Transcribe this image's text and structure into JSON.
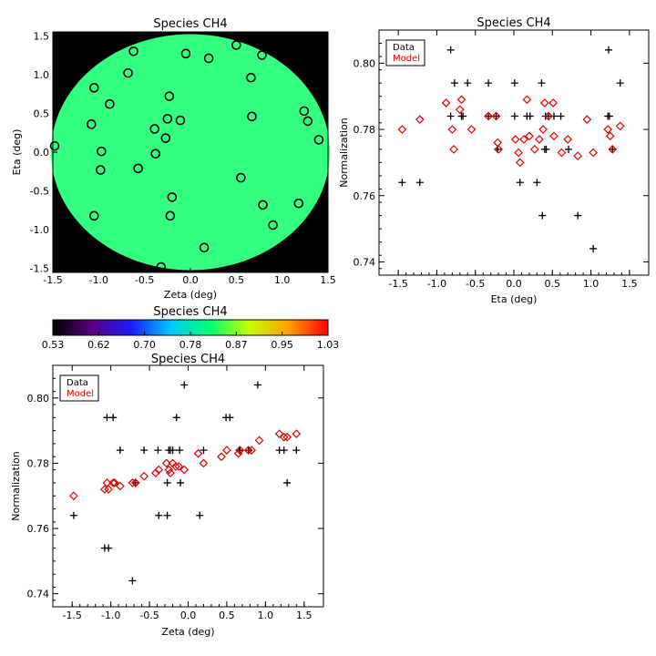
{
  "chart_data": [
    {
      "type": "map",
      "title": "Species CH4",
      "xlabel": "Zeta (deg)",
      "ylabel": "Eta (deg)",
      "xlim": [
        -1.5,
        1.5
      ],
      "ylim": [
        -1.55,
        1.55
      ],
      "xticks": [
        "-1.5",
        "-1.0",
        "-0.5",
        "0.0",
        "0.5",
        "1.0",
        "1.5"
      ],
      "yticks": [
        "-1.5",
        "-1.0",
        "-0.5",
        "0.0",
        "0.5",
        "1.0",
        "1.5"
      ],
      "background_color": "#000000",
      "disk_color": "#33ff80",
      "disk_radius": 1.52,
      "marker": "circle",
      "points": [
        {
          "x": -0.62,
          "y": 1.3
        },
        {
          "x": -0.68,
          "y": 1.02
        },
        {
          "x": -0.05,
          "y": 1.27
        },
        {
          "x": 0.2,
          "y": 1.21
        },
        {
          "x": 0.5,
          "y": 1.38
        },
        {
          "x": 0.78,
          "y": 1.25
        },
        {
          "x": 0.66,
          "y": 0.96
        },
        {
          "x": -1.05,
          "y": 0.83
        },
        {
          "x": -0.88,
          "y": 0.62
        },
        {
          "x": -1.08,
          "y": 0.36
        },
        {
          "x": -0.23,
          "y": 0.72
        },
        {
          "x": -0.25,
          "y": 0.43
        },
        {
          "x": -0.11,
          "y": 0.41
        },
        {
          "x": -0.39,
          "y": 0.3
        },
        {
          "x": -0.27,
          "y": 0.18
        },
        {
          "x": 0.67,
          "y": 0.46
        },
        {
          "x": 1.24,
          "y": 0.53
        },
        {
          "x": 1.28,
          "y": 0.4
        },
        {
          "x": 1.4,
          "y": 0.16
        },
        {
          "x": -1.48,
          "y": 0.08
        },
        {
          "x": -0.97,
          "y": 0.01
        },
        {
          "x": -0.98,
          "y": -0.23
        },
        {
          "x": -0.57,
          "y": -0.21
        },
        {
          "x": -0.38,
          "y": -0.02
        },
        {
          "x": 0.55,
          "y": -0.33
        },
        {
          "x": -0.2,
          "y": -0.58
        },
        {
          "x": 0.79,
          "y": -0.68
        },
        {
          "x": 1.18,
          "y": -0.66
        },
        {
          "x": -1.05,
          "y": -0.82
        },
        {
          "x": -0.22,
          "y": -0.82
        },
        {
          "x": 0.9,
          "y": -0.94
        },
        {
          "x": 0.15,
          "y": -1.23
        },
        {
          "x": -0.32,
          "y": -1.48
        }
      ]
    },
    {
      "type": "scatter",
      "title": "Species CH4",
      "xlabel": "Eta (deg)",
      "ylabel": "Normalization",
      "xlim": [
        -1.75,
        1.75
      ],
      "ylim": [
        0.736,
        0.81
      ],
      "xticks": [
        "-1.5",
        "-1.0",
        "-0.5",
        "0.0",
        "0.5",
        "1.0",
        "1.5"
      ],
      "yticks": [
        "0.74",
        "0.76",
        "0.78",
        "0.80"
      ],
      "legend": {
        "position": "top-left",
        "entries": [
          {
            "label": "Data",
            "color": "#000000"
          },
          {
            "label": "Model",
            "color": "#e00000"
          }
        ]
      },
      "series": [
        {
          "name": "Data",
          "marker": "plus",
          "color": "#000000",
          "points": [
            [
              -0.82,
              0.804
            ],
            [
              -0.77,
              0.794
            ],
            [
              -0.6,
              0.794
            ],
            [
              -0.33,
              0.794
            ],
            [
              0.01,
              0.794
            ],
            [
              0.36,
              0.794
            ],
            [
              1.38,
              0.794
            ],
            [
              -0.82,
              0.784
            ],
            [
              -0.68,
              0.784
            ],
            [
              -0.66,
              0.784
            ],
            [
              -0.33,
              0.784
            ],
            [
              -0.23,
              0.784
            ],
            [
              0.01,
              0.784
            ],
            [
              0.17,
              0.784
            ],
            [
              0.21,
              0.784
            ],
            [
              0.41,
              0.784
            ],
            [
              0.45,
              0.784
            ],
            [
              0.52,
              0.784
            ],
            [
              0.61,
              0.784
            ],
            [
              1.22,
              0.784
            ],
            [
              1.24,
              0.784
            ],
            [
              -0.21,
              0.774
            ],
            [
              0.4,
              0.774
            ],
            [
              0.42,
              0.774
            ],
            [
              0.71,
              0.774
            ],
            [
              1.28,
              0.774
            ],
            [
              -1.45,
              0.764
            ],
            [
              -1.22,
              0.764
            ],
            [
              0.08,
              0.764
            ],
            [
              0.3,
              0.764
            ],
            [
              1.23,
              0.804
            ],
            [
              0.37,
              0.754
            ],
            [
              0.83,
              0.754
            ],
            [
              1.03,
              0.744
            ]
          ]
        },
        {
          "name": "Model",
          "marker": "diamond",
          "color": "#e00000",
          "points": [
            [
              -1.45,
              0.78
            ],
            [
              -1.22,
              0.783
            ],
            [
              -0.88,
              0.788
            ],
            [
              -0.8,
              0.78
            ],
            [
              -0.78,
              0.774
            ],
            [
              -0.68,
              0.789
            ],
            [
              -0.7,
              0.786
            ],
            [
              -0.55,
              0.78
            ],
            [
              -0.33,
              0.784
            ],
            [
              -0.23,
              0.784
            ],
            [
              -0.2,
              0.774
            ],
            [
              -0.21,
              0.776
            ],
            [
              0.02,
              0.777
            ],
            [
              0.06,
              0.773
            ],
            [
              0.08,
              0.77
            ],
            [
              0.13,
              0.777
            ],
            [
              0.17,
              0.789
            ],
            [
              0.2,
              0.778
            ],
            [
              0.27,
              0.774
            ],
            [
              0.33,
              0.777
            ],
            [
              0.38,
              0.78
            ],
            [
              0.4,
              0.788
            ],
            [
              0.45,
              0.784
            ],
            [
              0.51,
              0.788
            ],
            [
              0.52,
              0.778
            ],
            [
              0.62,
              0.773
            ],
            [
              0.7,
              0.777
            ],
            [
              0.83,
              0.772
            ],
            [
              0.95,
              0.783
            ],
            [
              1.03,
              0.773
            ],
            [
              1.22,
              0.78
            ],
            [
              1.25,
              0.778
            ],
            [
              1.28,
              0.774
            ],
            [
              1.38,
              0.781
            ]
          ]
        }
      ]
    },
    {
      "type": "colorbar",
      "title": "Species CH4",
      "ticks": [
        "0.53",
        "0.62",
        "0.70",
        "0.78",
        "0.87",
        "0.95",
        "1.03"
      ],
      "colors": [
        "#000000",
        "#5a0080",
        "#1b1bff",
        "#00c8ff",
        "#00ff70",
        "#c8ff00",
        "#ffa000",
        "#ff0000"
      ]
    },
    {
      "type": "scatter",
      "title": "Species CH4",
      "xlabel": "Zeta (deg)",
      "ylabel": "Normalization",
      "xlim": [
        -1.75,
        1.75
      ],
      "ylim": [
        0.736,
        0.81
      ],
      "xticks": [
        "-1.5",
        "-1.0",
        "-0.5",
        "0.0",
        "0.5",
        "1.0",
        "1.5"
      ],
      "yticks": [
        "0.74",
        "0.76",
        "0.78",
        "0.80"
      ],
      "legend": {
        "position": "top-left",
        "entries": [
          {
            "label": "Data",
            "color": "#000000"
          },
          {
            "label": "Model",
            "color": "#e00000"
          }
        ]
      },
      "series": [
        {
          "name": "Data",
          "marker": "plus",
          "color": "#000000",
          "points": [
            [
              -0.05,
              0.804
            ],
            [
              0.9,
              0.804
            ],
            [
              -1.05,
              0.794
            ],
            [
              -0.97,
              0.794
            ],
            [
              -0.15,
              0.794
            ],
            [
              0.49,
              0.794
            ],
            [
              0.54,
              0.794
            ],
            [
              -0.88,
              0.784
            ],
            [
              -0.57,
              0.784
            ],
            [
              -0.39,
              0.784
            ],
            [
              -0.25,
              0.784
            ],
            [
              -0.23,
              0.784
            ],
            [
              -0.2,
              0.784
            ],
            [
              -0.11,
              0.784
            ],
            [
              0.2,
              0.784
            ],
            [
              0.66,
              0.784
            ],
            [
              0.67,
              0.784
            ],
            [
              0.78,
              0.784
            ],
            [
              1.18,
              0.784
            ],
            [
              1.24,
              0.784
            ],
            [
              1.4,
              0.784
            ],
            [
              -0.68,
              0.774
            ],
            [
              -0.27,
              0.774
            ],
            [
              -0.1,
              0.774
            ],
            [
              1.28,
              0.774
            ],
            [
              -1.48,
              0.764
            ],
            [
              -0.38,
              0.764
            ],
            [
              -0.27,
              0.764
            ],
            [
              0.15,
              0.764
            ],
            [
              -1.08,
              0.754
            ],
            [
              -1.03,
              0.754
            ],
            [
              -0.72,
              0.744
            ]
          ]
        },
        {
          "name": "Model",
          "marker": "diamond",
          "color": "#e00000",
          "points": [
            [
              -1.48,
              0.77
            ],
            [
              -1.08,
              0.772
            ],
            [
              -1.05,
              0.774
            ],
            [
              -1.03,
              0.772
            ],
            [
              -0.97,
              0.774
            ],
            [
              -0.95,
              0.774
            ],
            [
              -0.88,
              0.773
            ],
            [
              -0.72,
              0.774
            ],
            [
              -0.68,
              0.774
            ],
            [
              -0.57,
              0.776
            ],
            [
              -0.42,
              0.777
            ],
            [
              -0.38,
              0.778
            ],
            [
              -0.28,
              0.78
            ],
            [
              -0.25,
              0.778
            ],
            [
              -0.23,
              0.777
            ],
            [
              -0.2,
              0.78
            ],
            [
              -0.16,
              0.779
            ],
            [
              -0.12,
              0.779
            ],
            [
              -0.05,
              0.778
            ],
            [
              0.13,
              0.783
            ],
            [
              0.2,
              0.78
            ],
            [
              0.43,
              0.782
            ],
            [
              0.5,
              0.784
            ],
            [
              0.65,
              0.783
            ],
            [
              0.67,
              0.784
            ],
            [
              0.78,
              0.784
            ],
            [
              0.82,
              0.784
            ],
            [
              0.92,
              0.787
            ],
            [
              1.18,
              0.789
            ],
            [
              1.24,
              0.788
            ],
            [
              1.28,
              0.788
            ],
            [
              1.4,
              0.789
            ]
          ]
        }
      ]
    }
  ]
}
